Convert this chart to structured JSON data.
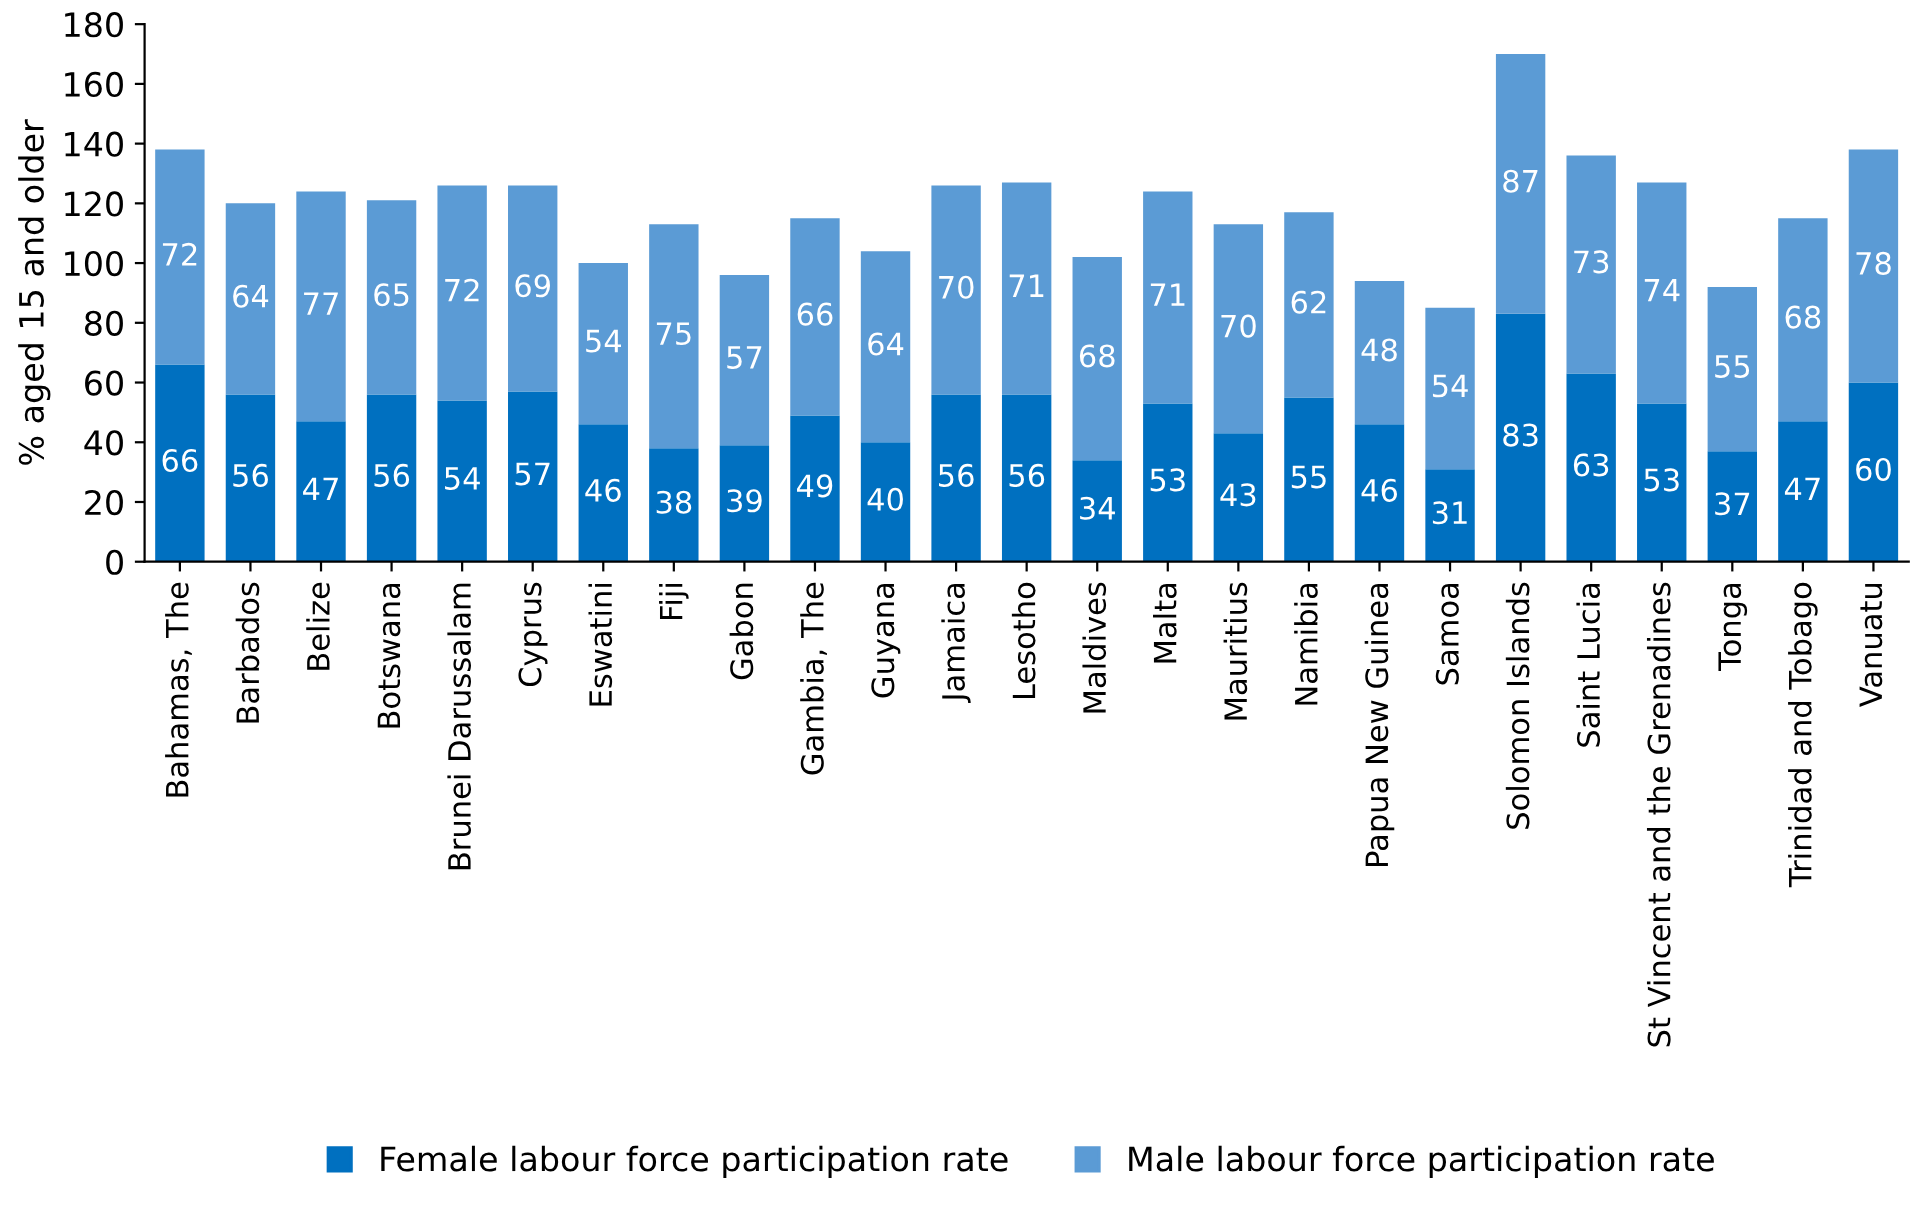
{
  "chart_data": {
    "type": "bar",
    "stacked": true,
    "ylabel": "% aged 15 and older",
    "categories": [
      "Bahamas, The",
      "Barbados",
      "Belize",
      "Botswana",
      "Brunei Darussalam",
      "Cyprus",
      "Eswatini",
      "Fiji",
      "Gabon",
      "Gambia, The",
      "Guyana",
      "Jamaica",
      "Lesotho",
      "Maldives",
      "Malta",
      "Mauritius",
      "Namibia",
      "Papua New Guinea",
      "Samoa",
      "Solomon Islands",
      "Saint Lucia",
      "St Vincent and the Grenadines",
      "Tonga",
      "Trinidad and Tobago",
      "Vanuatu"
    ],
    "series": [
      {
        "name": "Female labour force participation rate",
        "color": "#0070c0",
        "values": [
          66,
          56,
          47,
          56,
          54,
          57,
          46,
          38,
          39,
          49,
          40,
          56,
          56,
          34,
          53,
          43,
          55,
          46,
          31,
          83,
          63,
          53,
          37,
          47,
          60
        ]
      },
      {
        "name": "Male labour force participation rate",
        "color": "#5b9bd5",
        "values": [
          72,
          64,
          77,
          65,
          72,
          69,
          54,
          75,
          57,
          66,
          64,
          70,
          71,
          68,
          71,
          70,
          62,
          48,
          54,
          87,
          73,
          74,
          55,
          68,
          78
        ]
      }
    ],
    "ylim": [
      0,
      180
    ],
    "yticks": [
      0,
      20,
      40,
      60,
      80,
      100,
      120,
      140,
      160,
      180
    ],
    "data_labels": true,
    "grid": false,
    "legend": "bottom"
  }
}
